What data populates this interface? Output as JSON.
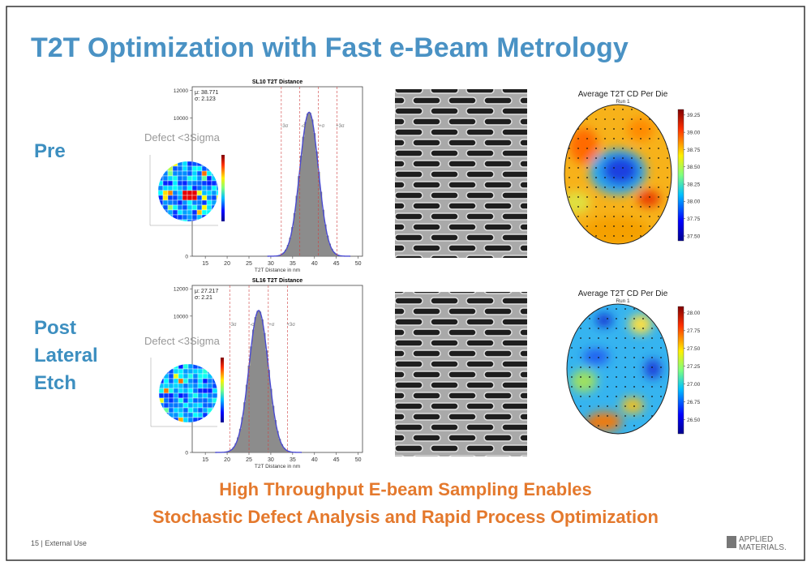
{
  "title": "T2T Optimization with Fast e-Beam Metrology",
  "rows": [
    {
      "label": "Pre",
      "histogram": {
        "title": "SL10 T2T Distance",
        "stats": [
          {
            "value": 38.771,
            "label": "μ: 38.771"
          },
          {
            "value": 2.123,
            "label": "σ: 2.123"
          }
        ],
        "xlabel": "T2T Distance in nm",
        "xlim": [
          12,
          51
        ],
        "xticks": [
          15,
          20,
          25,
          30,
          35,
          40,
          45,
          50
        ],
        "ylim": [
          0,
          12250
        ],
        "yticks": [
          0,
          10000,
          12000
        ],
        "sigma_lines": [
          {
            "value": -3,
            "label": "-3σ"
          },
          {
            "value": -1,
            "label": "-σ"
          },
          {
            "value": 1,
            "label": "+σ"
          },
          {
            "value": 3,
            "label": "+3σ"
          }
        ]
      },
      "inset_label": "Defect <3Sigma",
      "wafer_map": {
        "title": "Average T2T CD Per Die",
        "subtitle": "Run 1",
        "clim": [
          37.43,
          39.33
        ],
        "cticks": [
          {
            "value": 39.25,
            "label": "39.25"
          },
          {
            "value": 39.0,
            "label": "39.00"
          },
          {
            "value": 38.75,
            "label": "38.75"
          },
          {
            "value": 38.5,
            "label": "38.50"
          },
          {
            "value": 38.25,
            "label": "38.25"
          },
          {
            "value": 38.0,
            "label": "38.00"
          },
          {
            "value": 37.75,
            "label": "37.75"
          },
          {
            "value": 37.5,
            "label": "37.50"
          }
        ]
      }
    },
    {
      "label": "Post Lateral Etch",
      "histogram": {
        "title": "SL16 T2T Distance",
        "stats": [
          {
            "value": 27.217,
            "label": "μ: 27.217"
          },
          {
            "value": 2.21,
            "label": "σ: 2.21"
          }
        ],
        "xlabel": "T2T Distance in nm",
        "xlim": [
          12,
          51
        ],
        "xticks": [
          15,
          20,
          25,
          30,
          35,
          40,
          45,
          50
        ],
        "ylim": [
          0,
          12250
        ],
        "yticks": [
          0,
          10000,
          12000
        ],
        "sigma_lines": [
          {
            "value": -3,
            "label": "-3σ"
          },
          {
            "value": -1,
            "label": "-σ"
          },
          {
            "value": 1,
            "label": "+σ"
          },
          {
            "value": 3,
            "label": "+3σ"
          }
        ]
      },
      "inset_label": "Defect <3Sigma",
      "wafer_map": {
        "title": "Average T2T CD Per Die",
        "subtitle": "Run 1",
        "clim": [
          26.3,
          28.09
        ],
        "cticks": [
          {
            "value": 28.0,
            "label": "28.00"
          },
          {
            "value": 27.75,
            "label": "27.75"
          },
          {
            "value": 27.5,
            "label": "27.50"
          },
          {
            "value": 27.25,
            "label": "27.25"
          },
          {
            "value": 27.0,
            "label": "27.00"
          },
          {
            "value": 26.75,
            "label": "26.75"
          },
          {
            "value": 26.5,
            "label": "26.50"
          }
        ]
      }
    }
  ],
  "conclusion": [
    "High Throughput E-beam Sampling Enables",
    "Stochastic Defect Analysis and Rapid Process Optimization"
  ],
  "footer": "15  |  External Use",
  "logo": [
    "APPLIED",
    "MATERIALS."
  ]
}
